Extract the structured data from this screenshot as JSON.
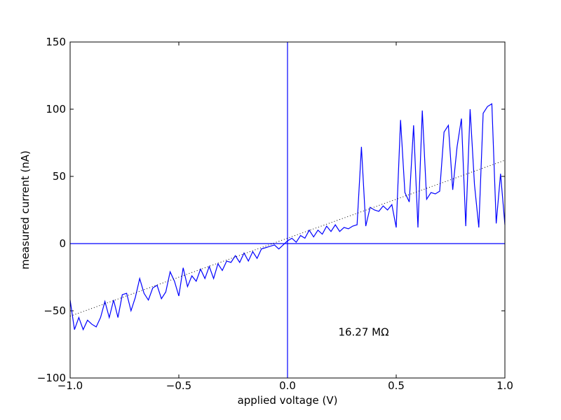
{
  "chart_data": {
    "type": "line",
    "xlabel": "applied voltage (V)",
    "ylabel": "measured current (nA)",
    "annotation": {
      "text": "16.27 MΩ",
      "x": 0.35,
      "y": -66
    },
    "x": [
      -1.0,
      -0.98,
      -0.96,
      -0.94,
      -0.92,
      -0.9,
      -0.88,
      -0.86,
      -0.84,
      -0.82,
      -0.8,
      -0.78,
      -0.76,
      -0.74,
      -0.72,
      -0.7,
      -0.68,
      -0.66,
      -0.64,
      -0.62,
      -0.6,
      -0.58,
      -0.56,
      -0.54,
      -0.52,
      -0.5,
      -0.48,
      -0.46,
      -0.44,
      -0.42,
      -0.4,
      -0.38,
      -0.36,
      -0.34,
      -0.32,
      -0.3,
      -0.28,
      -0.26,
      -0.24,
      -0.22,
      -0.2,
      -0.18,
      -0.16,
      -0.14,
      -0.12,
      -0.1,
      -0.08,
      -0.06,
      -0.04,
      -0.02,
      0.0,
      0.02,
      0.04,
      0.06,
      0.08,
      0.1,
      0.12,
      0.14,
      0.16,
      0.18,
      0.2,
      0.22,
      0.24,
      0.26,
      0.28,
      0.3,
      0.32,
      0.34,
      0.36,
      0.38,
      0.4,
      0.42,
      0.44,
      0.46,
      0.48,
      0.5,
      0.52,
      0.54,
      0.56,
      0.58,
      0.6,
      0.62,
      0.64,
      0.66,
      0.68,
      0.7,
      0.72,
      0.74,
      0.76,
      0.78,
      0.8,
      0.82,
      0.84,
      0.86,
      0.88,
      0.9,
      0.92,
      0.94,
      0.96,
      0.98,
      1.0
    ],
    "series": [
      {
        "color": "#0000ff",
        "style": "solid",
        "values": [
          -42,
          -64,
          -55,
          -64,
          -57,
          -60,
          -62,
          -55,
          -43,
          -55,
          -42,
          -55,
          -38,
          -37,
          -50,
          -40,
          -26,
          -37,
          -42,
          -33,
          -31,
          -41,
          -36,
          -21,
          -28,
          -39,
          -18,
          -32,
          -24,
          -28,
          -19,
          -26,
          -17,
          -26,
          -15,
          -20,
          -13,
          -14,
          -9,
          -14,
          -7,
          -13,
          -6,
          -11,
          -4,
          -3,
          -2,
          -1,
          -4,
          -1,
          2,
          4,
          1,
          6,
          4,
          10,
          5,
          10,
          7,
          13,
          9,
          14,
          9,
          12,
          11,
          13,
          14,
          72,
          13,
          27,
          25,
          24,
          28,
          25,
          29,
          12,
          92,
          38,
          31,
          88,
          12,
          99,
          33,
          38,
          37,
          39,
          83,
          88,
          40,
          72,
          93,
          13,
          100,
          44,
          12,
          97,
          102,
          104,
          15,
          52,
          14
        ]
      },
      {
        "color": "#000000",
        "style": "dotted",
        "x": [
          -1,
          1
        ],
        "values": [
          -54,
          62
        ]
      }
    ],
    "axhline": 0,
    "axvline": 0,
    "line_color": "#0000ff",
    "xlim": [
      -1,
      1
    ],
    "ylim": [
      -100,
      150
    ],
    "xticks": [
      {
        "value": -1,
        "label": "−1.0"
      },
      {
        "value": -0.5,
        "label": "−0.5"
      },
      {
        "value": 0,
        "label": "0.0"
      },
      {
        "value": 0.5,
        "label": "0.5"
      },
      {
        "value": 1,
        "label": "1.0"
      }
    ],
    "yticks": [
      {
        "value": -100,
        "label": "−100"
      },
      {
        "value": -50,
        "label": "−50"
      },
      0,
      50,
      100,
      150
    ]
  }
}
